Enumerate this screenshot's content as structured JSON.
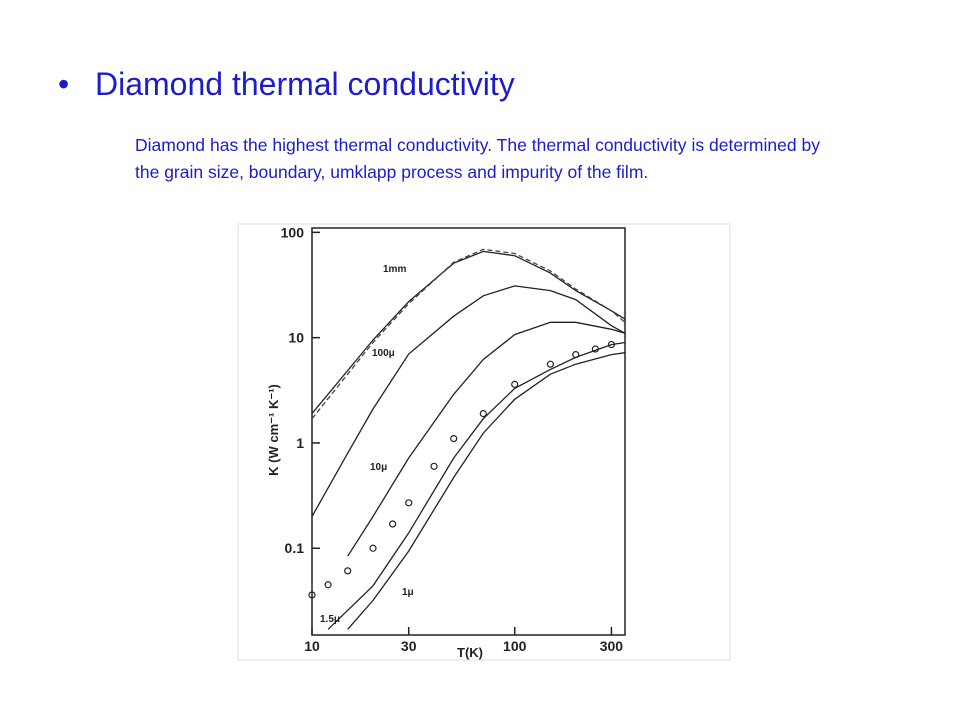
{
  "slide": {
    "title": "Diamond thermal conductivity",
    "body": "Diamond has the highest thermal conductivity. The thermal conductivity is determined by the grain size, boundary, umklapp process and impurity of the film."
  },
  "chart_data": {
    "type": "line",
    "xlabel": "T(K)",
    "ylabel": "K (W cm⁻¹ K⁻¹)",
    "xscale": "log",
    "yscale": "log",
    "xlim": [
      10,
      350
    ],
    "ylim": [
      0.015,
      110
    ],
    "xticks": [
      10,
      30,
      100,
      300
    ],
    "yticks": [
      0.1,
      1,
      10,
      100
    ],
    "series": [
      {
        "name": "1mm",
        "color": "#222",
        "style": "solid",
        "x": [
          10,
          20,
          30,
          50,
          70,
          100,
          150,
          200,
          300,
          350
        ],
        "values": [
          1.9,
          9.5,
          22,
          51,
          66,
          60,
          41,
          28,
          18,
          15
        ]
      },
      {
        "color": "#444",
        "style": "dashed",
        "x": [
          10,
          20,
          30,
          50,
          70,
          100,
          150,
          200,
          300,
          350
        ],
        "values": [
          1.7,
          9,
          21,
          52,
          69,
          63,
          43,
          29,
          18,
          14
        ]
      },
      {
        "name": "100μ",
        "color": "#222",
        "style": "solid",
        "x": [
          10,
          15,
          20,
          30,
          50,
          70,
          100,
          150,
          200,
          300,
          350
        ],
        "values": [
          0.2,
          0.8,
          2.1,
          7,
          16,
          25,
          31,
          28,
          23,
          13,
          11
        ]
      },
      {
        "name": "10μ",
        "color": "#222",
        "style": "solid",
        "x": [
          15,
          20,
          30,
          50,
          70,
          100,
          150,
          200,
          300,
          350
        ],
        "values": [
          0.084,
          0.2,
          0.72,
          2.9,
          6.2,
          10.7,
          14,
          14,
          12,
          11
        ]
      },
      {
        "name": "1μ",
        "color": "#222",
        "style": "solid",
        "x": [
          15,
          20,
          30,
          50,
          70,
          100,
          150,
          200,
          300,
          350
        ],
        "values": [
          0.017,
          0.032,
          0.094,
          0.47,
          1.24,
          2.6,
          4.5,
          5.6,
          6.9,
          7.2
        ]
      },
      {
        "name": "1.5μ",
        "color": "#222",
        "style": "solid",
        "x": [
          12,
          20,
          30,
          50,
          70,
          100,
          150,
          200,
          300,
          350
        ],
        "values": [
          0.017,
          0.044,
          0.14,
          0.72,
          1.7,
          3.3,
          5,
          6.5,
          8.6,
          9
        ]
      },
      {
        "color": "#222",
        "style": "markers",
        "x": [
          10,
          12,
          15,
          20,
          25,
          30,
          40,
          50,
          70,
          100,
          150,
          200,
          250,
          300
        ],
        "values": [
          0.036,
          0.045,
          0.061,
          0.1,
          0.17,
          0.27,
          0.6,
          1.1,
          1.9,
          3.6,
          5.6,
          6.9,
          7.8,
          8.6
        ]
      }
    ]
  }
}
